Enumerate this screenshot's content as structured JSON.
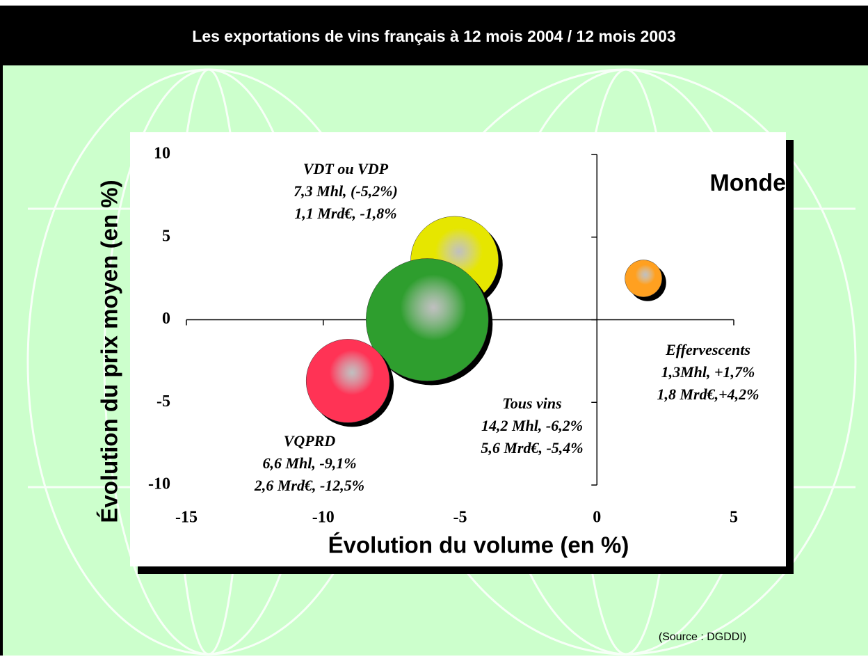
{
  "chart_data": {
    "type": "bubble",
    "title": "Les exportations de vins français à 12 mois 2004 / 12 mois 2003",
    "x_label": "Évolution du volume (en %)",
    "y_label": "Évolution du prix moyen (en %)",
    "annotation": "Monde",
    "source": "(Source : DGDDI)",
    "xlim": [
      -15,
      5
    ],
    "ylim": [
      -10,
      10
    ],
    "xticks": [
      -15,
      -10,
      -5,
      0,
      5
    ],
    "yticks": [
      10,
      5,
      0,
      -5,
      -10
    ],
    "points": [
      {
        "label": [
          "VDT ou VDP",
          "7,3 Mhl, (-5,2%)",
          "1,1 Mrd€, -1,8%"
        ],
        "color": "#e6e600",
        "x": -5.2,
        "y": 3.6,
        "size": 7.3
      },
      {
        "label": [
          "Tous vins",
          "14,2 Mhl, -6,2%",
          "5,6 Mrd€, -5,4%"
        ],
        "color": "#2e9e2e",
        "x": -6.2,
        "y": 0,
        "size": 14.2
      },
      {
        "label": [
          "VQPRD",
          "6,6 Mhl, -9,1%",
          "2,6 Mrd€, -12,5%"
        ],
        "color": "#ff3355",
        "x": -9.1,
        "y": -3.7,
        "size": 6.6
      },
      {
        "label": [
          "Effervescents",
          "1,3Mhl, +1,7%",
          "1,8 Mrd€,+4,2%"
        ],
        "color": "#ffa020",
        "x": 1.7,
        "y": 2.5,
        "size": 1.3
      }
    ]
  }
}
